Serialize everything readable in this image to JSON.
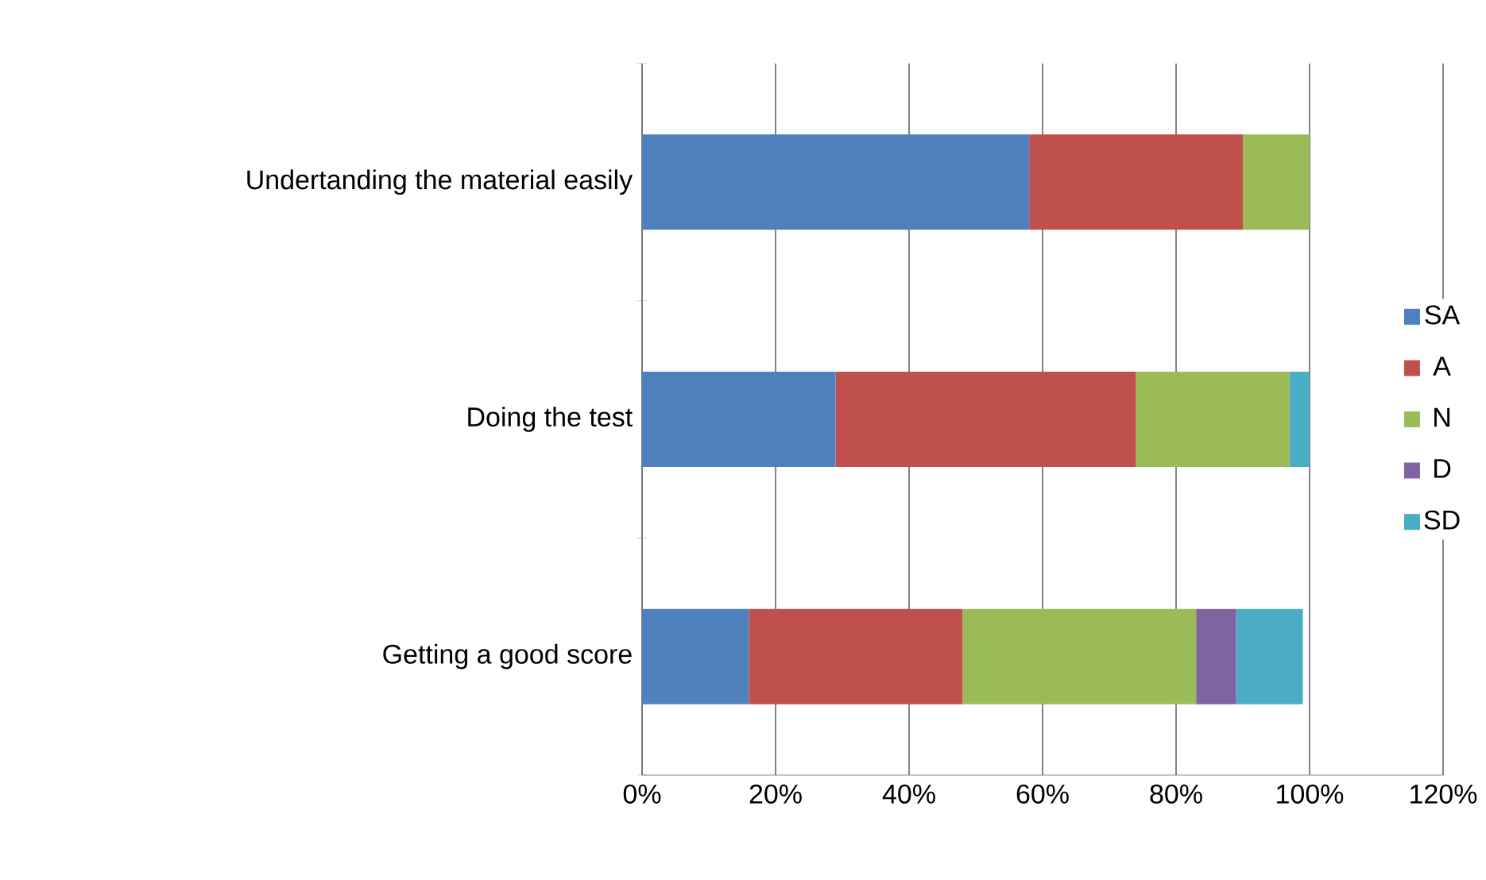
{
  "chart_data": {
    "type": "bar",
    "orientation": "horizontal",
    "stacked": true,
    "categories": [
      "Undertanding the material easily",
      "Doing the test",
      "Getting a good score"
    ],
    "series": [
      {
        "name": "SA",
        "color": "#4f81bd",
        "values": [
          58,
          29,
          16
        ]
      },
      {
        "name": "A",
        "color": "#c0504d",
        "values": [
          32,
          45,
          32
        ]
      },
      {
        "name": "N",
        "color": "#9bbb59",
        "values": [
          10,
          23,
          35
        ]
      },
      {
        "name": "D",
        "color": "#8064a2",
        "values": [
          0,
          0,
          6
        ]
      },
      {
        "name": "SD",
        "color": "#4bacc6",
        "values": [
          0,
          3,
          10
        ]
      }
    ],
    "xlim": [
      0,
      120
    ],
    "xticks": [
      {
        "value": 0,
        "label": "0%"
      },
      {
        "value": 20,
        "label": "20%"
      },
      {
        "value": 40,
        "label": "40%"
      },
      {
        "value": 60,
        "label": "60%"
      },
      {
        "value": 80,
        "label": "80%"
      },
      {
        "value": 100,
        "label": "100%"
      },
      {
        "value": 120,
        "label": "120%"
      }
    ],
    "grid": "x",
    "legend": "right"
  }
}
